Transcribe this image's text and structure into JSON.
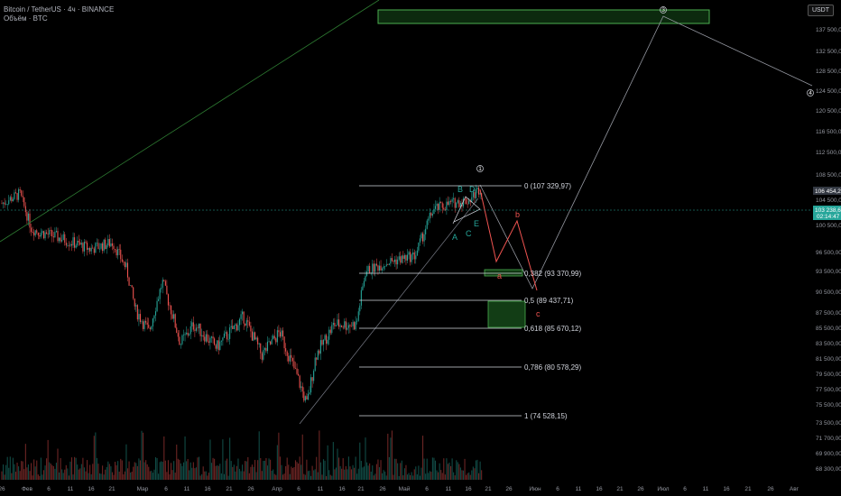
{
  "header": {
    "title": "Bitcoin / TetherUS · 4ч · BINANCE",
    "volume_label": "Объём · BTC"
  },
  "currency_button": "USDT",
  "colors": {
    "up": "#26a69a",
    "down": "#ef5350",
    "fib_line": "#d1d4dc",
    "zone_fill": "#1b5e20",
    "zone_stroke": "#4caf50",
    "projection": "#9598a1",
    "wave_teal": "#26a69a",
    "wave_red": "#ef5350",
    "current_price_bg": "#26a69a",
    "high_price_bg": "#333842"
  },
  "chart_data": {
    "type": "candlestick",
    "symbol": "BTCUSDT",
    "timeframe": "4h",
    "y_ticks": [
      "137 500,00",
      "132 500,00",
      "128 500,00",
      "124 500,00",
      "120 500,00",
      "116 500,00",
      "112 500,00",
      "108 500,00",
      "104 500,00",
      "100 500,00",
      "96 500,00",
      "93 500,00",
      "90 500,00",
      "87 500,00",
      "85 500,00",
      "83 500,00",
      "81 500,00",
      "79 500,00",
      "77 500,00",
      "75 500,00",
      "73 500,00",
      "71 700,00",
      "69 900,00",
      "68 300,00"
    ],
    "x_ticks": [
      "26",
      "Фев",
      "6",
      "11",
      "16",
      "21",
      "Мар",
      "6",
      "11",
      "16",
      "21",
      "26",
      "Апр",
      "6",
      "11",
      "16",
      "21",
      "26",
      "Май",
      "6",
      "11",
      "16",
      "21",
      "26",
      "Июн",
      "6",
      "11",
      "16",
      "21",
      "26",
      "Июл",
      "6",
      "11",
      "16",
      "21",
      "26",
      "Авг"
    ],
    "price_labels": [
      {
        "value": "106 454,26"
      },
      {
        "value": "103 238,63",
        "countdown": "02:14:47"
      }
    ],
    "fib_levels": [
      {
        "ratio": "0",
        "price": "107 329,97",
        "label": "0 (107 329,97)"
      },
      {
        "ratio": "0.382",
        "price": "93 370,99",
        "label": "0,382 (93 370,99)"
      },
      {
        "ratio": "0.5",
        "price": "89 437,71",
        "label": "0,5 (89 437,71)"
      },
      {
        "ratio": "0.618",
        "price": "85 670,12",
        "label": "0,618 (85 670,12)"
      },
      {
        "ratio": "0.786",
        "price": "80 578,29",
        "label": "0,786 (80 578,29)"
      },
      {
        "ratio": "1",
        "price": "74 528,15",
        "label": "1 (74 528,15)"
      }
    ],
    "wave_labels": {
      "teal": [
        "A",
        "B",
        "C",
        "D",
        "E"
      ],
      "red": [
        "a",
        "b",
        "c"
      ],
      "circled": [
        "1",
        "3",
        "4"
      ]
    }
  }
}
